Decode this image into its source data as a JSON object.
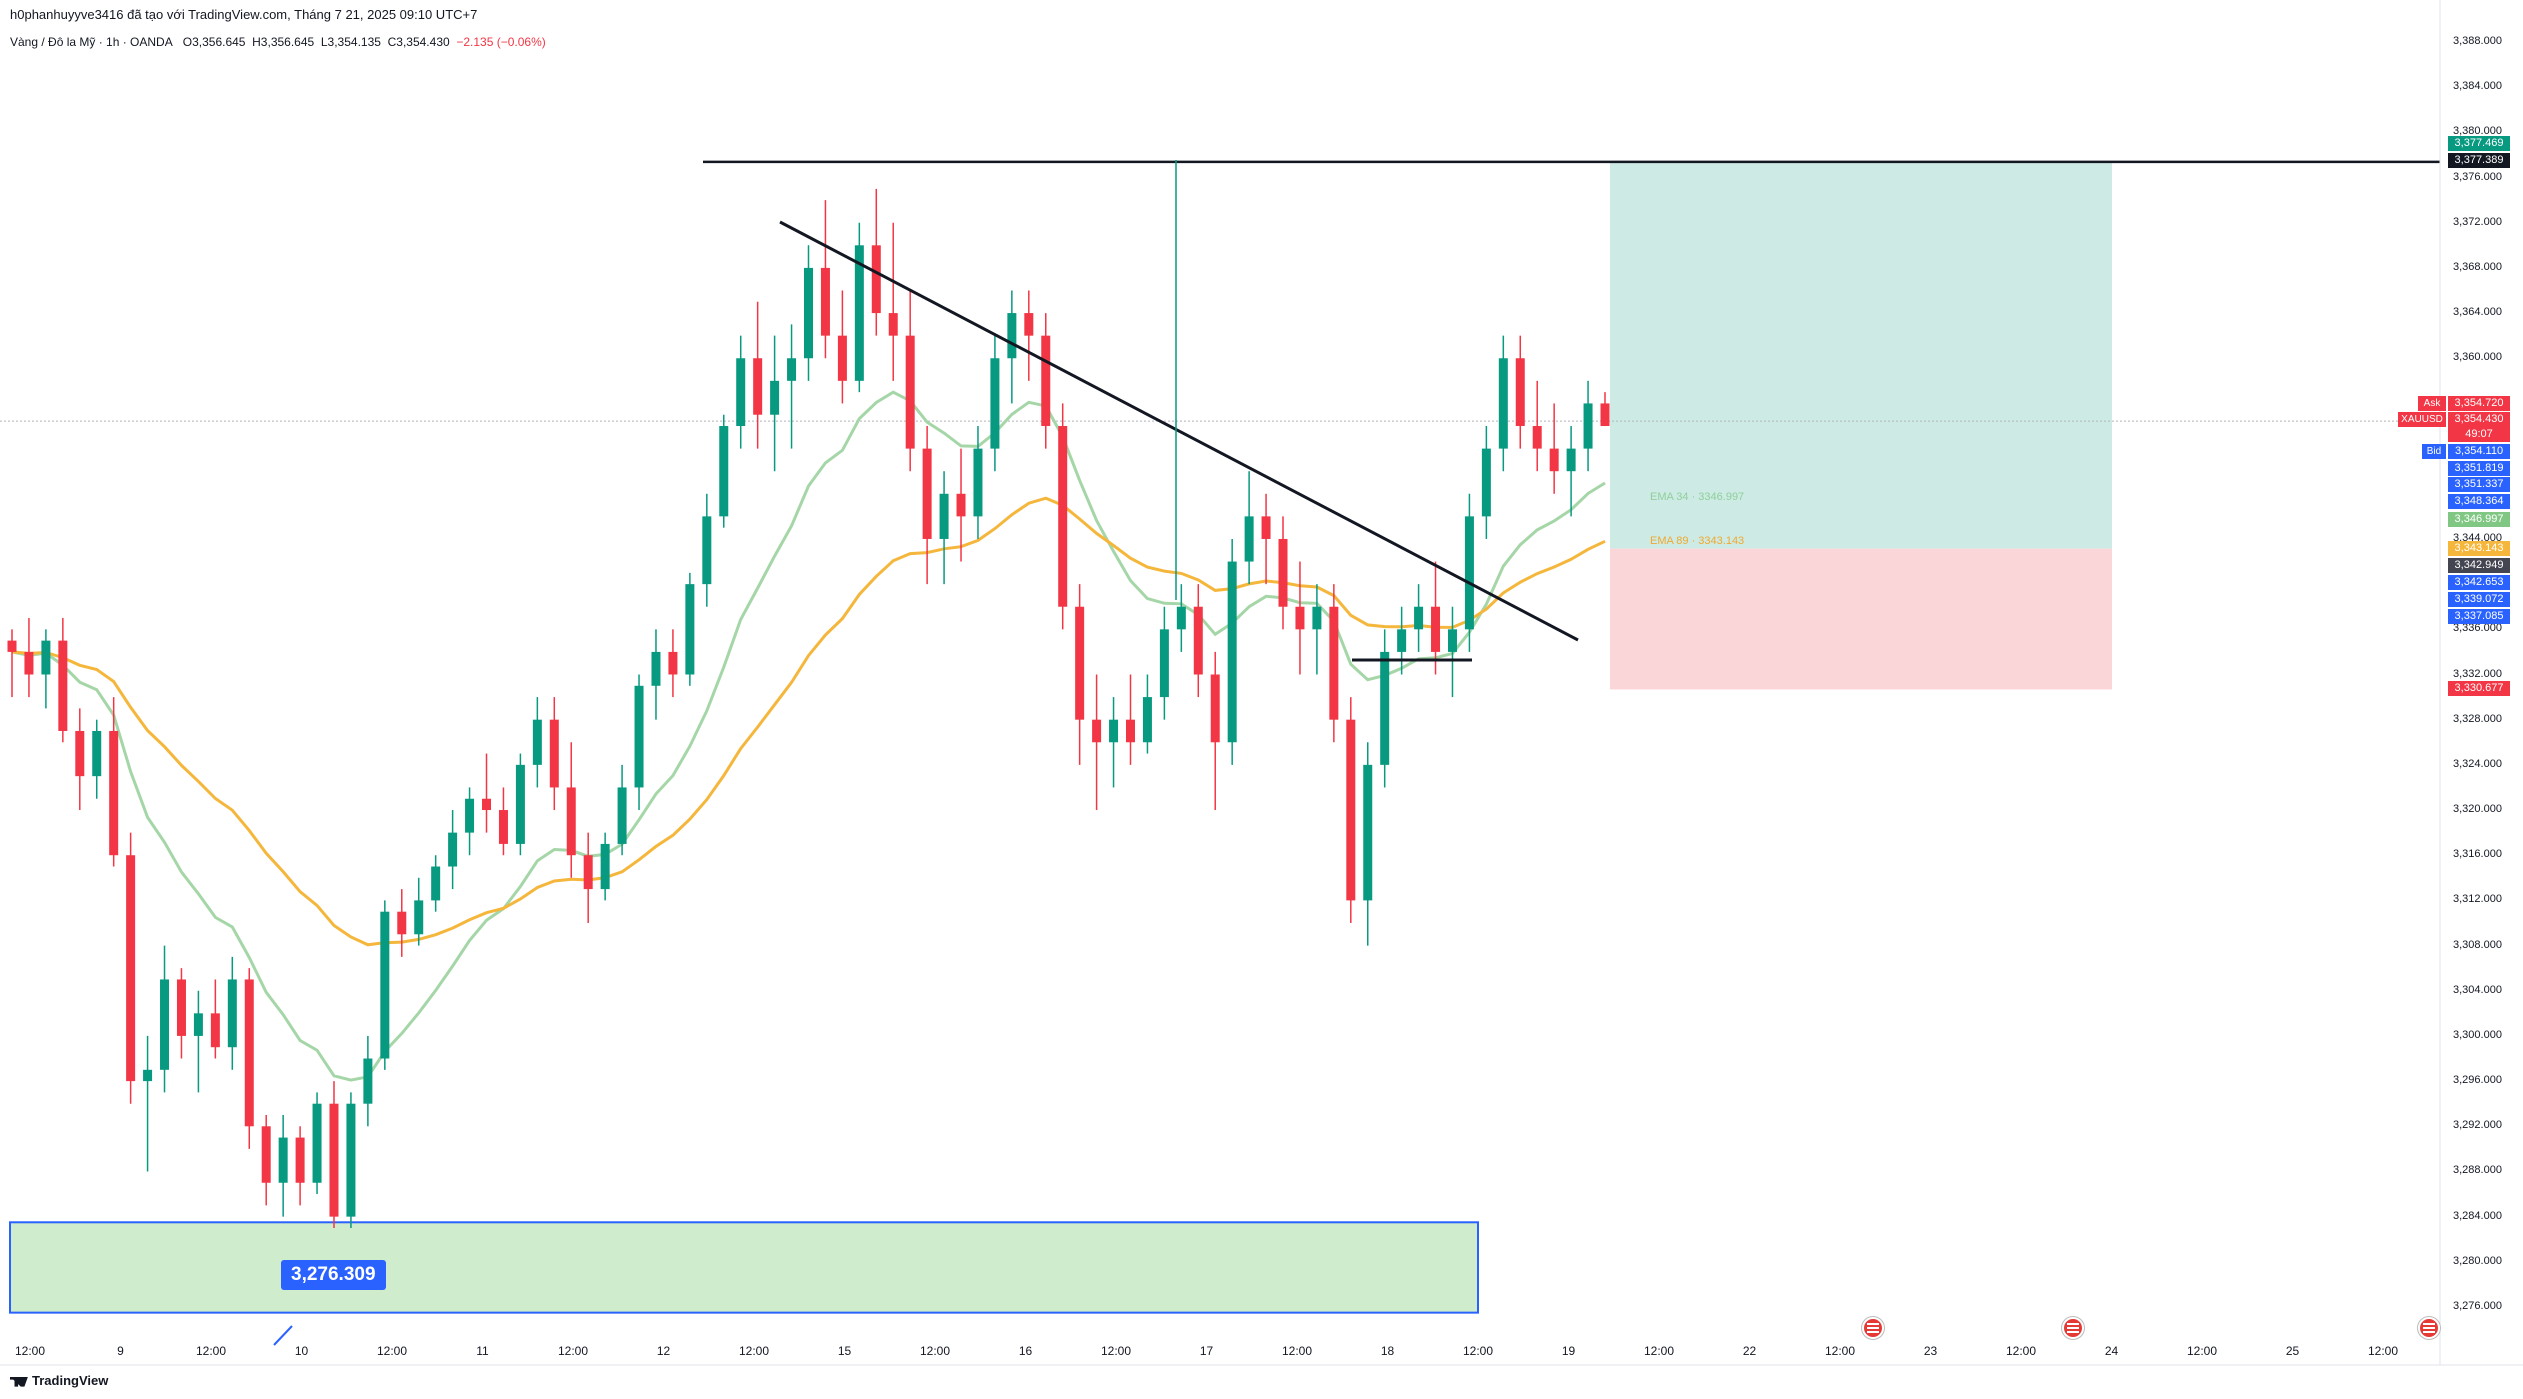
{
  "header": {
    "author_line": "h0phanhuyyve3416 đã tạo với TradingView.com, Tháng 7 21, 2025 09:10 UTC+7",
    "symbol_line": "Vàng / Đô la Mỹ · 1h · OANDA",
    "open": "O3,356.645",
    "high": "H3,356.645",
    "low": "L3,354.135",
    "close": "C3,354.430",
    "change": "−2.135 (−0.06%)"
  },
  "colors": {
    "up": "#089981",
    "down": "#f23645",
    "ema34": "#a5d6a7",
    "ema89": "#f5b63c",
    "accent": "#2962ff",
    "target_zone": "#cdebe4",
    "stop_zone": "#fbd6d9",
    "demand_zone": "#cfeccd"
  },
  "y_axis": {
    "ticks": [
      "3,388.000",
      "3,384.000",
      "3,380.000",
      "3,376.000",
      "3,372.000",
      "3,368.000",
      "3,364.000",
      "3,360.000",
      "3,344.000",
      "3,336.000",
      "3,332.000",
      "3,328.000",
      "3,324.000",
      "3,320.000",
      "3,316.000",
      "3,312.000",
      "3,308.000",
      "3,304.000",
      "3,300.000",
      "3,296.000",
      "3,292.000",
      "3,288.000",
      "3,284.000",
      "3,280.000",
      "3,276.000"
    ]
  },
  "x_axis": {
    "ticks": [
      "12:00",
      "9",
      "12:00",
      "10",
      "12:00",
      "11",
      "12:00",
      "12",
      "12:00",
      "15",
      "12:00",
      "16",
      "12:00",
      "17",
      "12:00",
      "18",
      "12:00",
      "19",
      "12:00",
      "22",
      "12:00",
      "23",
      "12:00",
      "24",
      "12:00",
      "25",
      "12:00"
    ]
  },
  "price_tags": {
    "top_green": "3,377.469",
    "top_black": "3,377.389",
    "ask_label": "Ask",
    "ask": "3,354.720",
    "symbol_label": "XAUUSD",
    "last": "3,354.430",
    "countdown": "49:07",
    "bid_label": "Bid",
    "bid": "3,354.110",
    "blue1": "3,351.819",
    "blue2": "3,351.337",
    "blue3": "3,348.364",
    "ema34_tag": "3,346.997",
    "ema89_tag": "3,343.143",
    "dark": "3,342.949",
    "blue4": "3,342.653",
    "blue5": "3,339.072",
    "blue6": "3,337.085",
    "stop": "3,330.677"
  },
  "ema_labels": {
    "ema34": "EMA 34 · 3346.997",
    "ema89": "EMA 89 · 3343.143"
  },
  "demand_zone_label": "3,276.309",
  "footer": {
    "brand": "TradingView"
  },
  "chart_data": {
    "type": "candlestick",
    "symbol": "XAUUSD",
    "interval": "1h",
    "ylim": [
      3274,
      3390
    ],
    "candles": [
      [
        3335,
        3336,
        3330,
        3334
      ],
      [
        3334,
        3337,
        3330,
        3332
      ],
      [
        3332,
        3336,
        3329,
        3335
      ],
      [
        3335,
        3337,
        3326,
        3327
      ],
      [
        3327,
        3329,
        3320,
        3323
      ],
      [
        3323,
        3328,
        3321,
        3327
      ],
      [
        3327,
        3330,
        3315,
        3316
      ],
      [
        3316,
        3318,
        3294,
        3296
      ],
      [
        3296,
        3300,
        3288,
        3297
      ],
      [
        3297,
        3308,
        3295,
        3305
      ],
      [
        3305,
        3306,
        3298,
        3300
      ],
      [
        3300,
        3304,
        3295,
        3302
      ],
      [
        3302,
        3305,
        3298,
        3299
      ],
      [
        3299,
        3307,
        3297,
        3305
      ],
      [
        3305,
        3306,
        3290,
        3292
      ],
      [
        3292,
        3293,
        3285,
        3287
      ],
      [
        3287,
        3293,
        3284,
        3291
      ],
      [
        3291,
        3292,
        3285,
        3287
      ],
      [
        3287,
        3295,
        3286,
        3294
      ],
      [
        3294,
        3296,
        3283,
        3284
      ],
      [
        3284,
        3295,
        3283,
        3294
      ],
      [
        3294,
        3300,
        3292,
        3298
      ],
      [
        3298,
        3312,
        3297,
        3311
      ],
      [
        3311,
        3313,
        3307,
        3309
      ],
      [
        3309,
        3314,
        3308,
        3312
      ],
      [
        3312,
        3316,
        3311,
        3315
      ],
      [
        3315,
        3320,
        3313,
        3318
      ],
      [
        3318,
        3322,
        3316,
        3321
      ],
      [
        3321,
        3325,
        3318,
        3320
      ],
      [
        3320,
        3322,
        3316,
        3317
      ],
      [
        3317,
        3325,
        3316,
        3324
      ],
      [
        3324,
        3330,
        3322,
        3328
      ],
      [
        3328,
        3330,
        3320,
        3322
      ],
      [
        3322,
        3326,
        3314,
        3316
      ],
      [
        3316,
        3318,
        3310,
        3313
      ],
      [
        3313,
        3318,
        3312,
        3317
      ],
      [
        3317,
        3324,
        3316,
        3322
      ],
      [
        3322,
        3332,
        3320,
        3331
      ],
      [
        3331,
        3336,
        3328,
        3334
      ],
      [
        3334,
        3336,
        3330,
        3332
      ],
      [
        3332,
        3341,
        3331,
        3340
      ],
      [
        3340,
        3348,
        3338,
        3346
      ],
      [
        3346,
        3355,
        3345,
        3354
      ],
      [
        3354,
        3362,
        3352,
        3360
      ],
      [
        3360,
        3365,
        3352,
        3355
      ],
      [
        3355,
        3362,
        3350,
        3358
      ],
      [
        3358,
        3363,
        3352,
        3360
      ],
      [
        3360,
        3370,
        3358,
        3368
      ],
      [
        3368,
        3374,
        3360,
        3362
      ],
      [
        3362,
        3366,
        3356,
        3358
      ],
      [
        3358,
        3372,
        3357,
        3370
      ],
      [
        3370,
        3375,
        3362,
        3364
      ],
      [
        3364,
        3372,
        3358,
        3362
      ],
      [
        3362,
        3366,
        3350,
        3352
      ],
      [
        3352,
        3354,
        3340,
        3344
      ],
      [
        3344,
        3350,
        3340,
        3348
      ],
      [
        3348,
        3352,
        3342,
        3346
      ],
      [
        3346,
        3354,
        3344,
        3352
      ],
      [
        3352,
        3362,
        3350,
        3360
      ],
      [
        3360,
        3366,
        3356,
        3364
      ],
      [
        3364,
        3366,
        3358,
        3362
      ],
      [
        3362,
        3364,
        3352,
        3354
      ],
      [
        3354,
        3356,
        3336,
        3338
      ],
      [
        3338,
        3340,
        3324,
        3328
      ],
      [
        3328,
        3332,
        3320,
        3326
      ],
      [
        3326,
        3330,
        3322,
        3328
      ],
      [
        3328,
        3332,
        3324,
        3326
      ],
      [
        3326,
        3332,
        3325,
        3330
      ],
      [
        3330,
        3338,
        3328,
        3336
      ],
      [
        3336,
        3340,
        3334,
        3338
      ],
      [
        3338,
        3340,
        3330,
        3332
      ],
      [
        3332,
        3334,
        3320,
        3326
      ],
      [
        3326,
        3344,
        3324,
        3342
      ],
      [
        3342,
        3350,
        3340,
        3346
      ],
      [
        3346,
        3348,
        3340,
        3344
      ],
      [
        3344,
        3346,
        3336,
        3338
      ],
      [
        3338,
        3342,
        3332,
        3336
      ],
      [
        3336,
        3340,
        3332,
        3338
      ],
      [
        3338,
        3340,
        3326,
        3328
      ],
      [
        3328,
        3330,
        3310,
        3312
      ],
      [
        3312,
        3326,
        3308,
        3324
      ],
      [
        3324,
        3336,
        3322,
        3334
      ],
      [
        3334,
        3338,
        3332,
        3336
      ],
      [
        3336,
        3340,
        3334,
        3338
      ],
      [
        3338,
        3342,
        3332,
        3334
      ],
      [
        3334,
        3338,
        3330,
        3336
      ],
      [
        3336,
        3348,
        3334,
        3346
      ],
      [
        3346,
        3354,
        3344,
        3352
      ],
      [
        3352,
        3362,
        3350,
        3360
      ],
      [
        3360,
        3362,
        3352,
        3354
      ],
      [
        3354,
        3358,
        3350,
        3352
      ],
      [
        3352,
        3356,
        3348,
        3350
      ],
      [
        3350,
        3354,
        3346,
        3352
      ],
      [
        3352,
        3358,
        3350,
        3356
      ],
      [
        3356,
        3357,
        3354,
        3354
      ]
    ],
    "annotations": {
      "resistance": 3377.389,
      "target": 3377.469,
      "entry": 3343.143,
      "stop": 3330.677,
      "demand_zone": [
        3275.5,
        3283.5
      ],
      "demand_label": 3276.309
    }
  }
}
